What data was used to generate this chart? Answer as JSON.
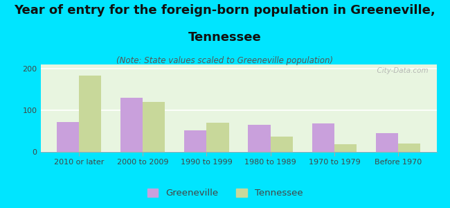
{
  "title_line1": "Year of entry for the foreign-born population in Greeneville,",
  "title_line2": "Tennessee",
  "subtitle": "(Note: State values scaled to Greeneville population)",
  "categories": [
    "2010 or later",
    "2000 to 2009",
    "1990 to 1999",
    "1980 to 1989",
    "1970 to 1979",
    "Before 1970"
  ],
  "greeneville_values": [
    72,
    130,
    52,
    65,
    68,
    45
  ],
  "tennessee_values": [
    183,
    120,
    70,
    37,
    18,
    20
  ],
  "greeneville_color": "#c9a0dc",
  "tennessee_color": "#c8d89a",
  "bg_color": "#00e5ff",
  "plot_bg": "#e8f5e0",
  "ylabel_ticks": [
    0,
    100,
    200
  ],
  "ylim": [
    0,
    210
  ],
  "bar_width": 0.35,
  "watermark": "  City-Data.com",
  "title_fontsize": 13,
  "subtitle_fontsize": 8.5,
  "tick_fontsize": 8,
  "legend_fontsize": 9.5
}
